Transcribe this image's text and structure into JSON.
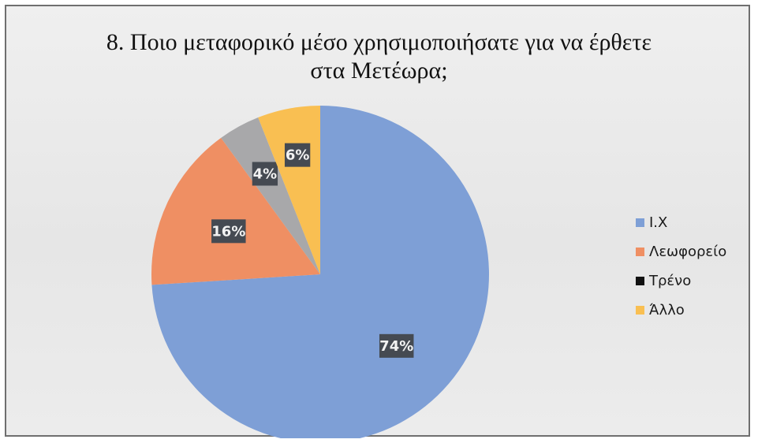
{
  "chart_data": {
    "type": "pie",
    "title_lines": [
      "8. Ποιο μεταφορικό μέσο χρησιμοποιήσατε για να έρθετε",
      "στα Μετέωρα;"
    ],
    "categories": [
      "Ι.Χ",
      "Λεωφορείο",
      "Τρένο",
      "Άλλο"
    ],
    "values": [
      74,
      16,
      4,
      6
    ],
    "data_labels": [
      "74%",
      "16%",
      "4%",
      "6%"
    ],
    "colors": [
      "#7e9fd6",
      "#ef8f63",
      "#a8a8aa",
      "#f9bf52"
    ],
    "legend_colors": [
      "#7e9fd6",
      "#ef8f63",
      "#111111",
      "#f9bf52"
    ],
    "legend_position": "right"
  }
}
